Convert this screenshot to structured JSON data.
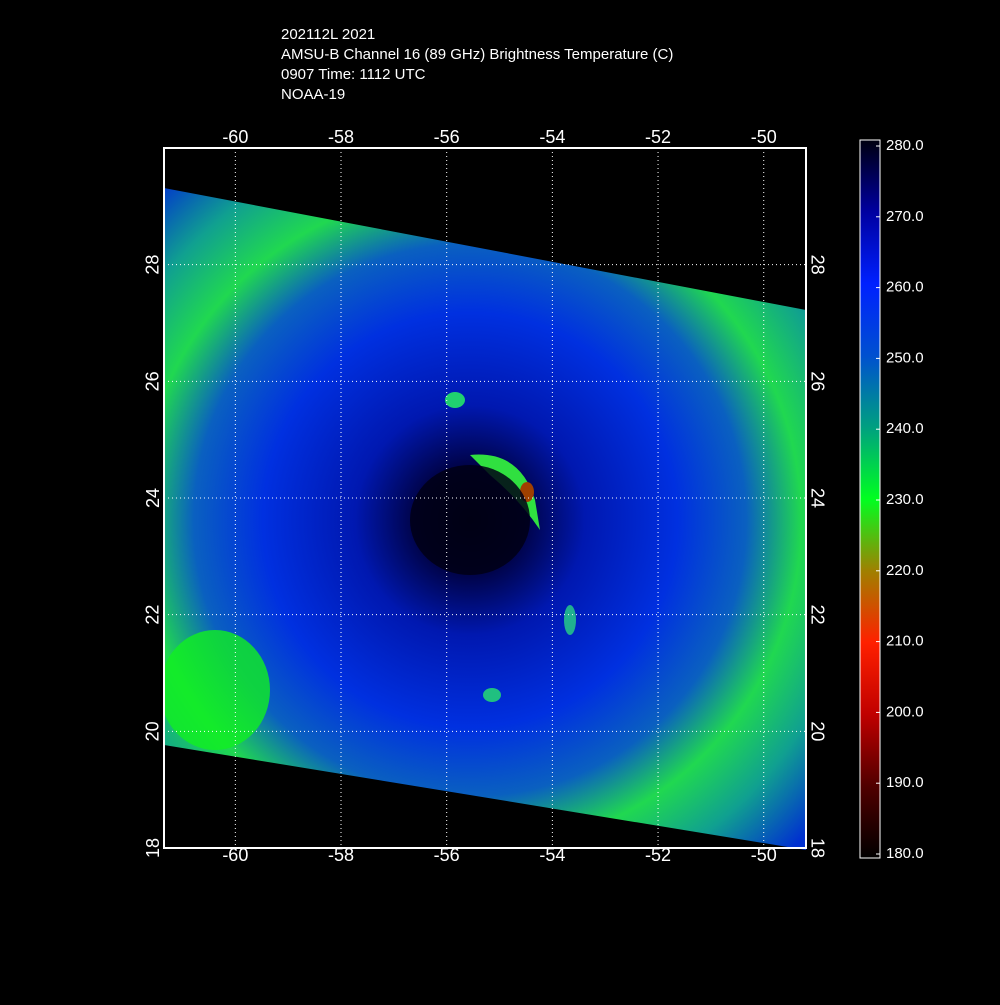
{
  "header": {
    "lines": [
      "202112L 2021",
      "AMSU-B Channel 16 (89 GHz) Brightness Temperature (C)",
      "0907 Time: 1112 UTC",
      "NOAA-19"
    ]
  },
  "map": {
    "xlim": [
      -61.35,
      -49.2
    ],
    "ylim": [
      18,
      30
    ],
    "xticks": [
      -60,
      -58,
      -56,
      -54,
      -52,
      -50
    ],
    "yticks": [
      18,
      20,
      22,
      24,
      26,
      28
    ],
    "grid": true
  },
  "colorbar": {
    "lim": [
      180,
      280
    ],
    "ticks": [
      {
        "value": 280,
        "label": "280.0"
      },
      {
        "value": 270,
        "label": "270.0"
      },
      {
        "value": 260,
        "label": "260.0"
      },
      {
        "value": 250,
        "label": "250.0"
      },
      {
        "value": 240,
        "label": "240.0"
      },
      {
        "value": 230,
        "label": "230.0"
      },
      {
        "value": 220,
        "label": "220.0"
      },
      {
        "value": 210,
        "label": "210.0"
      },
      {
        "value": 200,
        "label": "200.0"
      },
      {
        "value": 190,
        "label": "190.0"
      },
      {
        "value": 180,
        "label": "180.0"
      }
    ]
  }
}
